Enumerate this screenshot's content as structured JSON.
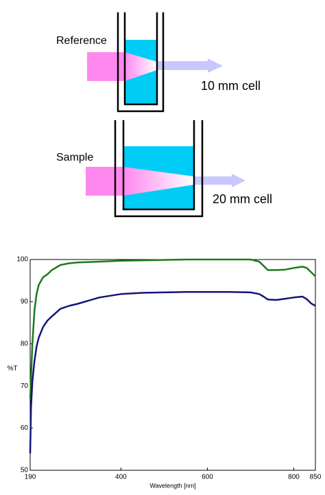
{
  "diagram": {
    "reference_label": "Reference",
    "reference_cell": "10 mm cell",
    "sample_label": "Sample",
    "sample_cell": "20 mm cell"
  },
  "chart_data": {
    "type": "line",
    "ylabel": "%T",
    "xlabel": "Wavelength [nm]",
    "x": [
      190,
      192,
      195,
      200,
      205,
      210,
      220,
      230,
      240,
      260,
      280,
      300,
      350,
      400,
      450,
      500,
      550,
      600,
      650,
      700,
      720,
      730,
      740,
      760,
      780,
      800,
      820,
      830,
      840,
      850
    ],
    "series": [
      {
        "color": "#1a7a1a",
        "values": [
          67,
          72,
          80,
          88,
          92,
          94,
          95.8,
          96.5,
          97.5,
          98.7,
          99.1,
          99.3,
          99.5,
          99.7,
          99.8,
          99.9,
          100,
          100,
          100,
          100,
          99.5,
          98.5,
          97.5,
          97.5,
          97.6,
          98,
          98.3,
          98,
          97,
          96
        ]
      },
      {
        "color": "#14147a",
        "values": [
          54,
          65,
          71,
          76,
          79.5,
          81.5,
          84,
          85.5,
          86.5,
          88.3,
          89,
          89.5,
          91,
          91.8,
          92.1,
          92.2,
          92.3,
          92.3,
          92.3,
          92.2,
          91.8,
          91.2,
          90.5,
          90.4,
          90.7,
          91,
          91.2,
          90.6,
          89.6,
          89
        ]
      }
    ],
    "xlim": [
      190,
      850
    ],
    "ylim": [
      50,
      100
    ],
    "xticks": [
      190,
      400,
      600,
      800,
      850
    ],
    "yticks": [
      50,
      60,
      70,
      80,
      90,
      100
    ]
  }
}
